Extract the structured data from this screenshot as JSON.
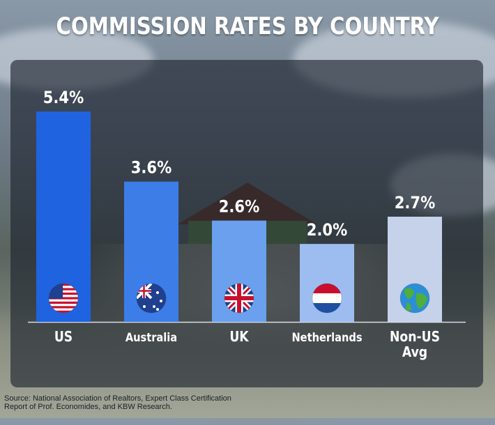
{
  "title": "COMMISSION RATES BY COUNTRY",
  "source": {
    "line1": "Source: National Association of Realtors, Expert Class Certification",
    "line2": "Report of Prof. Economides, and KBW Research."
  },
  "chart_data": {
    "type": "bar",
    "title": "COMMISSION RATES BY COUNTRY",
    "xlabel": "",
    "ylabel": "",
    "categories": [
      "US",
      "Australia",
      "UK",
      "Netherlands",
      "Non-US Avg"
    ],
    "category_lines": [
      [
        "US"
      ],
      [
        "Australia"
      ],
      [
        "UK"
      ],
      [
        "Netherlands"
      ],
      [
        "Non-US",
        "Avg"
      ]
    ],
    "values": [
      5.4,
      3.6,
      2.6,
      2.0,
      2.7
    ],
    "value_labels": [
      "5.4%",
      "3.6%",
      "2.6%",
      "2.0%",
      "2.7%"
    ],
    "icons": [
      "us-flag-icon",
      "australia-flag-icon",
      "uk-flag-icon",
      "netherlands-flag-icon",
      "globe-icon"
    ],
    "bar_colors": [
      "#1f63e0",
      "#3d7de8",
      "#6aa0ee",
      "#9dbdf0",
      "#c6d2ea"
    ],
    "ylim": [
      0,
      5.4
    ],
    "grid": false,
    "legend": "none"
  }
}
